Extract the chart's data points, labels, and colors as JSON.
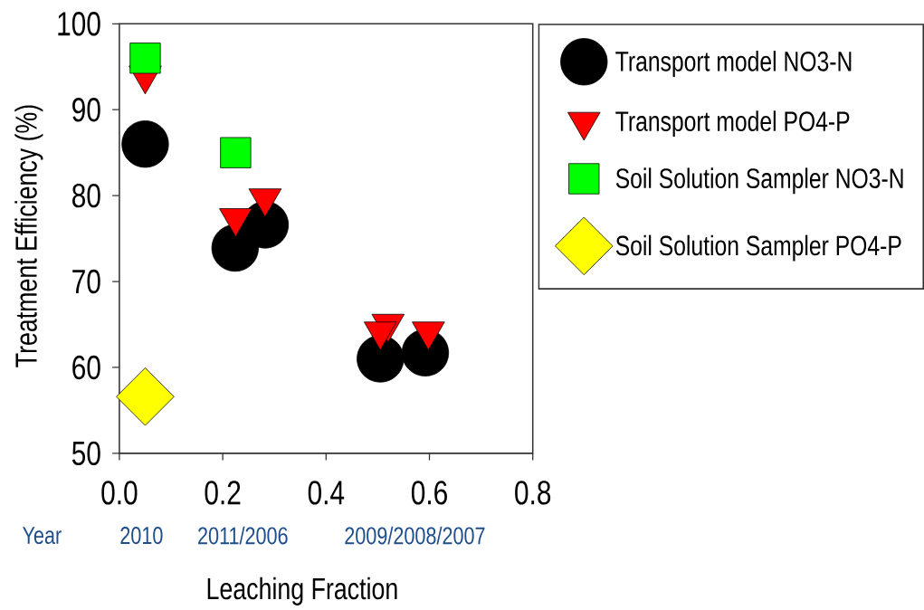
{
  "chart_data": {
    "type": "scatter",
    "xlabel": "Leaching Fraction",
    "ylabel": "Treatment Efficiency (%)",
    "annotations": [
      "Year",
      "2010",
      "2011/2006",
      "2009/2008/2007"
    ],
    "xlim": [
      0.0,
      0.8
    ],
    "ylim": [
      50,
      100
    ],
    "xticks": [
      {
        "value": 0.0,
        "label": "0.0"
      },
      0.2,
      0.4,
      0.6,
      0.8
    ],
    "yticks": [
      50,
      60,
      70,
      80,
      90,
      100
    ],
    "grid": false,
    "legend": "top right",
    "series": [
      {
        "name": "Transport model NO3-N",
        "color": "#000000",
        "marker": "circle",
        "x": [
          0.05,
          0.224,
          0.282,
          0.505,
          0.592
        ],
        "values": [
          86,
          73.9,
          76.6,
          61.0,
          61.7
        ]
      },
      {
        "name": "Transport model PO4-P",
        "color": "#ff0000",
        "marker": "triangle",
        "x": [
          0.05,
          0.225,
          0.282,
          0.52,
          0.505,
          0.598
        ],
        "values": [
          94,
          77.4,
          79.7,
          65.1,
          64.2,
          64.2
        ]
      },
      {
        "name": "Soil Solution Sampler NO3-N",
        "color": "#00ff00",
        "marker": "square",
        "x": [
          0.05,
          0.225
        ],
        "values": [
          96,
          85
        ]
      },
      {
        "name": "Soil Solution Sampler PO4-P",
        "color": "#ffff00",
        "marker": "diamond",
        "x": [
          0.05
        ],
        "values": [
          56.6
        ]
      }
    ]
  }
}
